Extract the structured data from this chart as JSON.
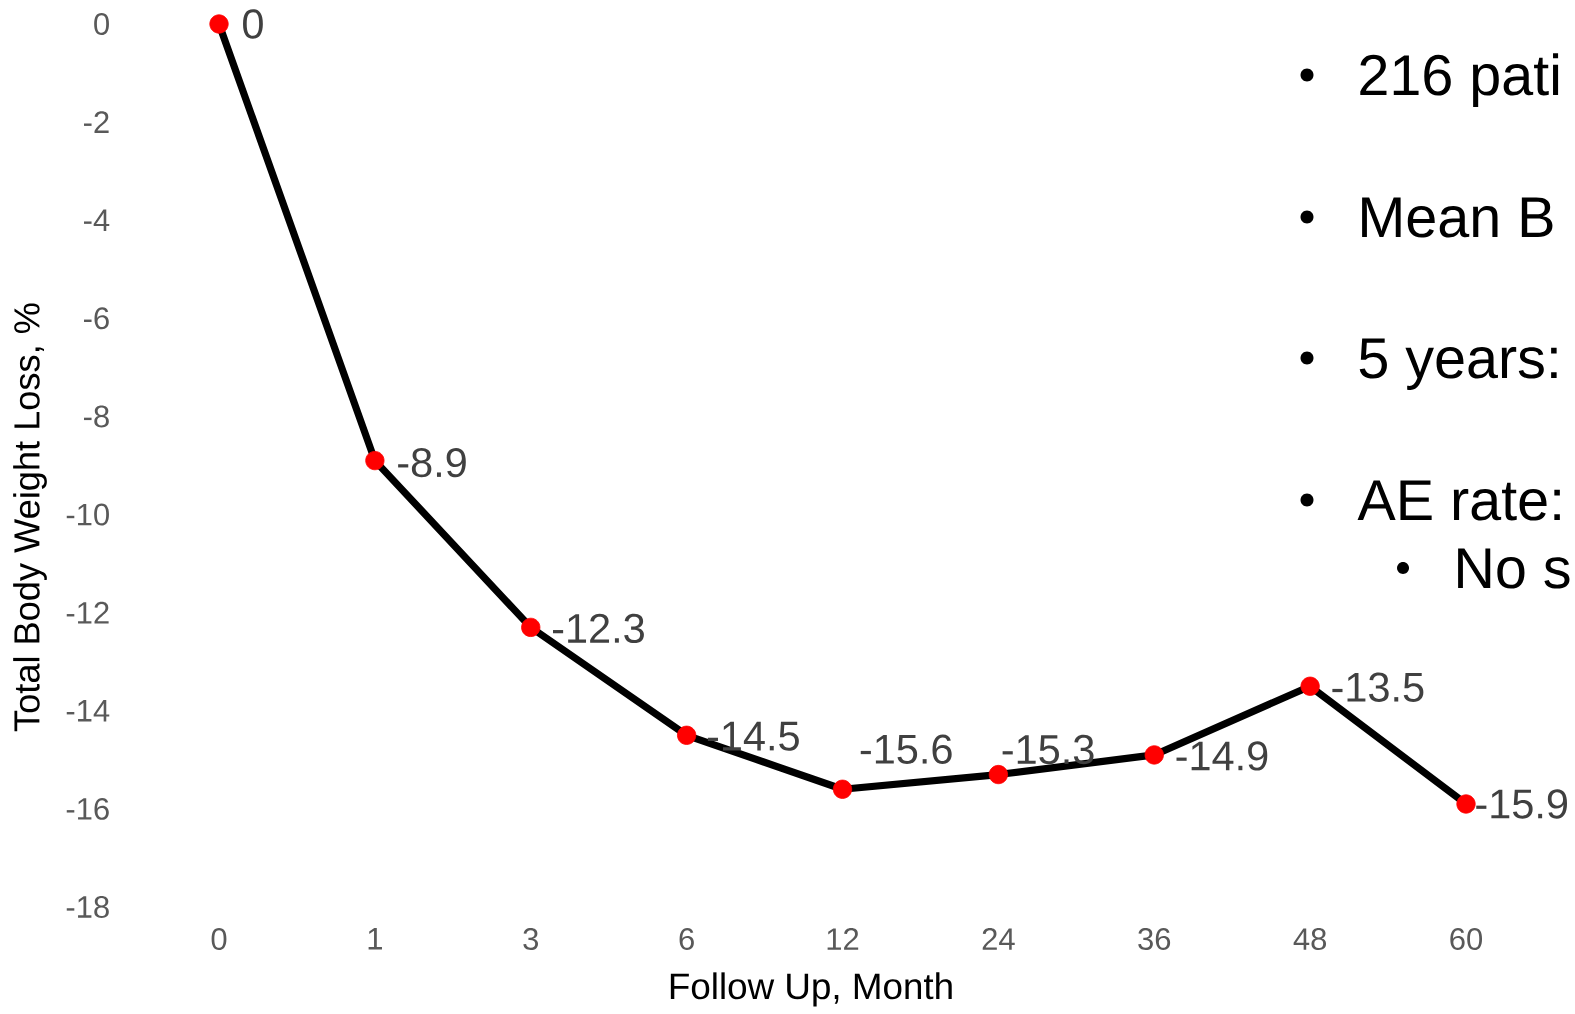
{
  "chart_data": {
    "type": "line",
    "xlabel": "Follow Up, Month",
    "ylabel": "Total Body Weight Loss, %",
    "categories": [
      "0",
      "1",
      "3",
      "6",
      "12",
      "24",
      "36",
      "48",
      "60"
    ],
    "values": [
      0,
      -8.9,
      -12.3,
      -14.5,
      -15.6,
      -15.3,
      -14.9,
      -13.5,
      -15.9
    ],
    "color": "#000000",
    "colors": [
      "#ff0000",
      "#ff0000",
      "#ff0000",
      "#ff0000",
      "#ff0000",
      "#ff0000",
      "#ff0000",
      "#ff0000",
      "#ff0000"
    ],
    "ylim": [
      -18,
      0
    ],
    "yticks": [
      -18,
      -16,
      -14,
      -12,
      -10,
      -8,
      -6,
      -4,
      -2,
      0
    ],
    "marker": "circle",
    "line_style": "solid",
    "data_labels": true,
    "annotations": [
      "216 pati",
      "Mean B",
      "5 years:",
      "AE rate:",
      "No s"
    ]
  }
}
